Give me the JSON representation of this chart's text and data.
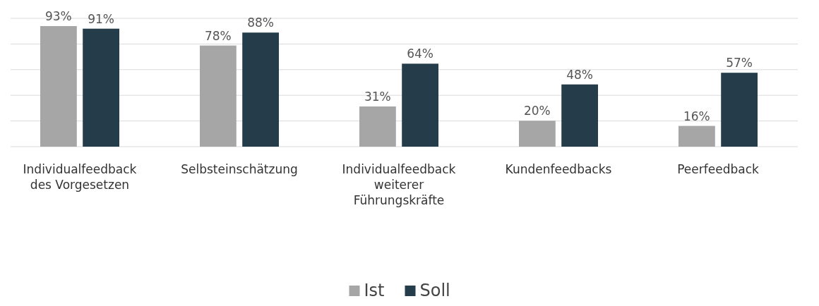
{
  "chart_data": {
    "type": "bar",
    "categories": [
      "Individualfeedback des Vorgesetzen",
      "Selbsteinschätzung",
      "Individualfeedback weiterer Führungskräfte",
      "Kundenfeedbacks",
      "Peerfeedback"
    ],
    "series": [
      {
        "name": "Ist",
        "color": "#a6a6a6",
        "values": [
          93,
          78,
          31,
          20,
          16
        ],
        "value_labels": [
          "93%",
          "78%",
          "31%",
          "20%",
          "16%"
        ]
      },
      {
        "name": "Soll",
        "color": "#253d4a",
        "values": [
          91,
          88,
          64,
          48,
          57
        ],
        "value_labels": [
          "91%",
          "88%",
          "64%",
          "48%",
          "57%"
        ]
      }
    ],
    "tick_labels": "x",
    "grid": "y",
    "legend": "bottom"
  }
}
